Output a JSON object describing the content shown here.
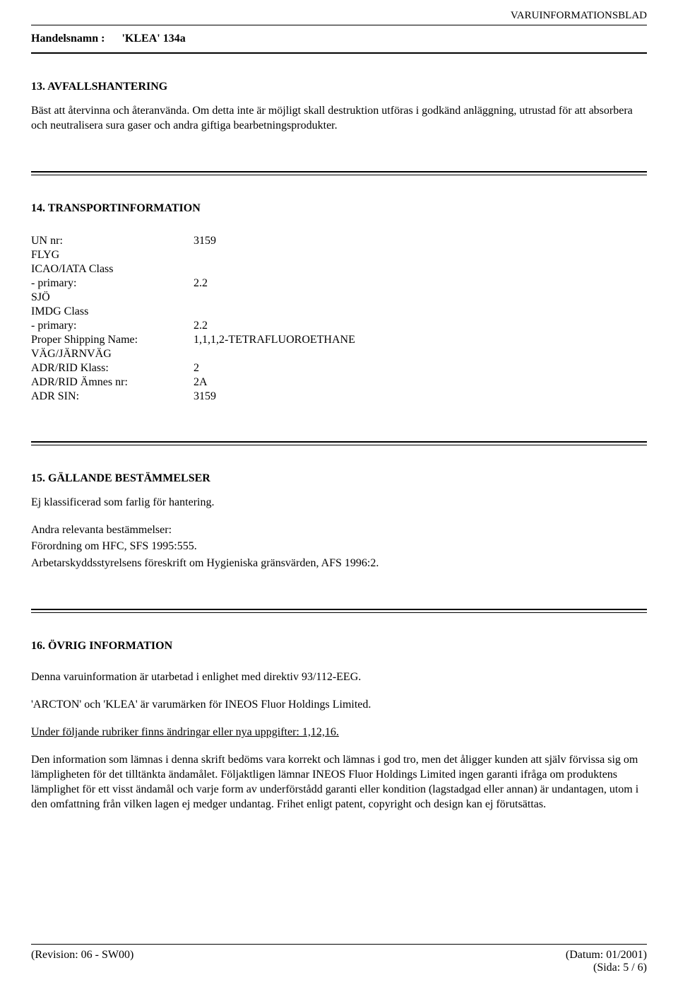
{
  "header": {
    "doc_type": "VARUINFORMATIONSBLAD",
    "trade_name_label": "Handelsnamn :",
    "trade_name_value": "'KLEA' 134a"
  },
  "section13": {
    "title": "13. AVFALLSHANTERING",
    "text": "Bäst att återvinna och återanvända. Om detta inte är möjligt skall destruktion utföras i godkänd anläggning, utrustad för att absorbera och neutralisera sura gaser och andra giftiga bearbetningsprodukter."
  },
  "section14": {
    "title": "14. TRANSPORTINFORMATION",
    "rows": [
      {
        "label": "UN nr:",
        "value": "3159"
      },
      {
        "label": "FLYG",
        "value": ""
      },
      {
        "label": "ICAO/IATA Class",
        "value": ""
      },
      {
        "label": "- primary:",
        "value": "2.2"
      },
      {
        "label": "SJÖ",
        "value": ""
      },
      {
        "label": "IMDG Class",
        "value": ""
      },
      {
        "label": "- primary:",
        "value": "2.2"
      },
      {
        "label": "Proper Shipping Name:",
        "value": "1,1,1,2-TETRAFLUOROETHANE"
      },
      {
        "label": "VÄG/JÄRNVÄG",
        "value": ""
      },
      {
        "label": "ADR/RID Klass:",
        "value": "2"
      },
      {
        "label": "ADR/RID Ämnes nr:",
        "value": "2A"
      },
      {
        "label": "ADR SIN:",
        "value": "3159"
      }
    ]
  },
  "section15": {
    "title": "15. GÄLLANDE BESTÄMMELSER",
    "line1": "Ej klassificerad som farlig för hantering.",
    "line2": "Andra relevanta bestämmelser:",
    "line3": "Förordning om HFC, SFS 1995:555.",
    "line4": "Arbetarskyddsstyrelsens föreskrift om Hygieniska gränsvärden, AFS 1996:2."
  },
  "section16": {
    "title": "16. ÖVRIG INFORMATION",
    "p1": "Denna varuinformation är utarbetad i enlighet med direktiv 93/112-EEG.",
    "p2": "'ARCTON' och 'KLEA' är varumärken för INEOS Fluor Holdings Limited.",
    "p3": "Under följande rubriker finns ändringar eller nya uppgifter: 1,12,16.",
    "p4": "Den information som lämnas i denna skrift bedöms vara korrekt och lämnas i god tro, men det åligger kunden att själv förvissa sig om lämpligheten för det tilltänkta ändamålet. Följaktligen lämnar INEOS Fluor Holdings Limited ingen garanti ifråga om produktens lämplighet för ett visst ändamål och varje form av underförstådd garanti eller kondition (lagstadgad eller annan) är undantagen, utom i den omfattning från vilken lagen ej medger undantag. Frihet enligt patent, copyright och design kan ej förutsättas."
  },
  "footer": {
    "revision": "(Revision: 06 - SW00)",
    "date": "(Datum: 01/2001)",
    "page": "(Sida: 5  /  6)"
  }
}
